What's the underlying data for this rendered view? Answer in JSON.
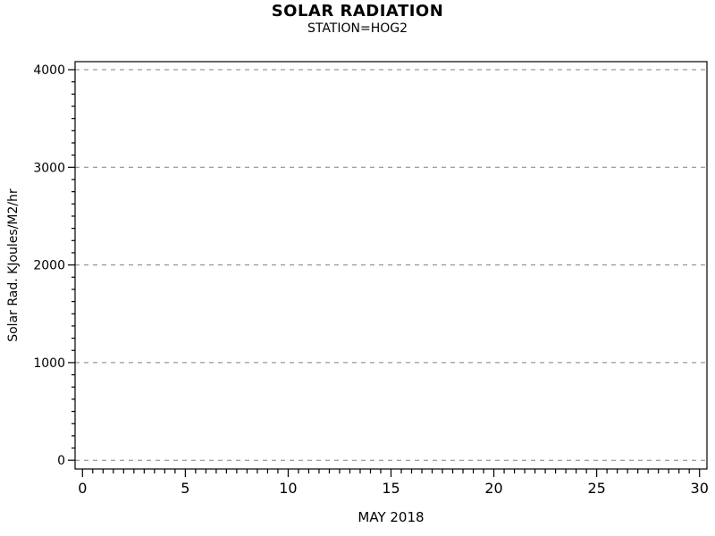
{
  "chart_data": {
    "type": "scatter",
    "title": "SOLAR RADIATION",
    "subtitle": "STATION=HOG2",
    "xlabel": "MAY 2018",
    "ylabel": "Solar Rad. KJoules/M2/hr",
    "xlim": [
      0,
      30
    ],
    "ylim": [
      0,
      4000
    ],
    "x_ticks": [
      0,
      5,
      10,
      15,
      20,
      25,
      30
    ],
    "y_ticks": [
      0,
      1000,
      2000,
      3000,
      4000
    ],
    "x_minor_divisions": 10,
    "y_minor_divisions": 8,
    "grid": "horizontal-dashed-at-y-majors",
    "grid_color": "#808080",
    "frame_color": "#000000",
    "tick_color": "#000000",
    "text_color": "#000000",
    "background_color": "#ffffff",
    "legend": "none",
    "series": []
  }
}
